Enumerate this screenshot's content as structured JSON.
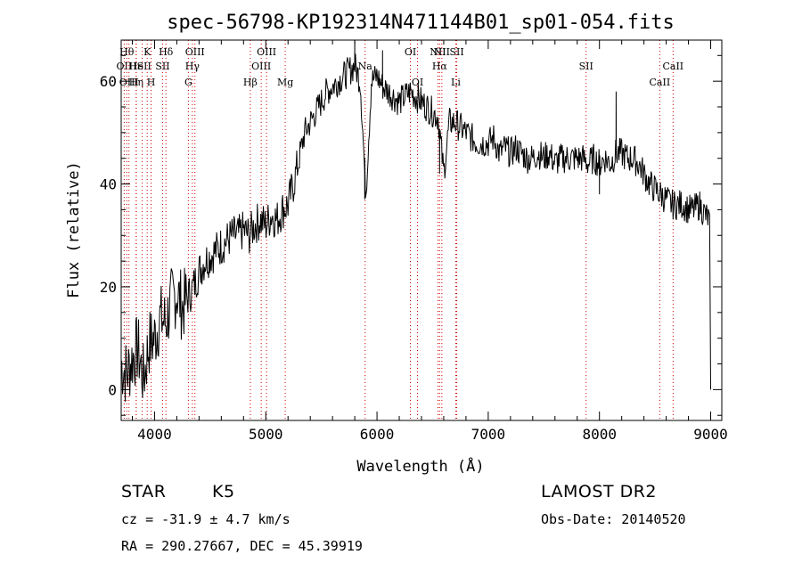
{
  "chart_data": {
    "type": "line",
    "title": "spec-56798-KP192314N471144B01_sp01-054.fits",
    "xlabel": "Wavelength (Å)",
    "ylabel": "Flux (relative)",
    "xlim": [
      3700,
      9100
    ],
    "ylim": [
      -6,
      68
    ],
    "x_ticks": [
      4000,
      5000,
      6000,
      7000,
      8000,
      9000
    ],
    "y_ticks": [
      0,
      20,
      40,
      60
    ],
    "grid": false,
    "line_color": "#000000",
    "marker_line_color": "#cc0000",
    "spectrum": {
      "x": [
        3700,
        3750,
        3800,
        3850,
        3900,
        3950,
        4000,
        4050,
        4100,
        4150,
        4200,
        4250,
        4300,
        4350,
        4400,
        4450,
        4500,
        4550,
        4600,
        4650,
        4700,
        4750,
        4800,
        4850,
        4900,
        4950,
        5000,
        5050,
        5100,
        5150,
        5200,
        5250,
        5300,
        5350,
        5400,
        5450,
        5500,
        5550,
        5600,
        5650,
        5700,
        5750,
        5800,
        5850,
        5900,
        5950,
        6000,
        6050,
        6100,
        6150,
        6200,
        6250,
        6300,
        6350,
        6400,
        6450,
        6500,
        6550,
        6600,
        6650,
        6700,
        6750,
        6800,
        6850,
        6900,
        6950,
        7000,
        7050,
        7100,
        7150,
        7200,
        7250,
        7300,
        7350,
        7400,
        7450,
        7500,
        7550,
        7600,
        7650,
        7700,
        7750,
        7800,
        7850,
        7900,
        7950,
        8000,
        8050,
        8100,
        8150,
        8200,
        8250,
        8300,
        8350,
        8400,
        8450,
        8500,
        8550,
        8600,
        8650,
        8700,
        8750,
        8800,
        8850,
        8900,
        8950,
        8990,
        9000
      ],
      "y": [
        5,
        3,
        6,
        8,
        2,
        9,
        10,
        14,
        13,
        17,
        19,
        16,
        18,
        20,
        23,
        25,
        26,
        27,
        28,
        29,
        30,
        30,
        31,
        30,
        32,
        33,
        32,
        34,
        33,
        35,
        36,
        40,
        45,
        50,
        52,
        54,
        56,
        58,
        59,
        60,
        61,
        62,
        63,
        60,
        38,
        60,
        61,
        59,
        58,
        57,
        56,
        57,
        58,
        57,
        56,
        55,
        54,
        53,
        42,
        52,
        52,
        51,
        50,
        49,
        48,
        48,
        48,
        49,
        46,
        47,
        46,
        47,
        46,
        45,
        45,
        46,
        45,
        46,
        44,
        45,
        45,
        45,
        45,
        45,
        44,
        45,
        44,
        45,
        44,
        46,
        46,
        45,
        45,
        44,
        42,
        40,
        39,
        38,
        37,
        36,
        36,
        36,
        35,
        35,
        36,
        34,
        33,
        0
      ]
    },
    "spikes": [
      {
        "x": 5800,
        "y": 68
      },
      {
        "x": 5890,
        "y": 37
      },
      {
        "x": 6050,
        "y": 66
      },
      {
        "x": 6563,
        "y": 42
      },
      {
        "x": 8150,
        "y": 58
      },
      {
        "x": 8000,
        "y": 38
      }
    ],
    "lines": [
      {
        "wl": 3727,
        "label": "OII",
        "row": 2
      },
      {
        "wl": 3750,
        "label": "Hθ",
        "row": 1
      },
      {
        "wl": 3770,
        "label": "OIII",
        "row": 3
      },
      {
        "wl": 3835,
        "label": "Hη",
        "row": 3
      },
      {
        "wl": 3835,
        "label": "He",
        "row": 2
      },
      {
        "wl": 3889,
        "label": "ISII",
        "row": 2
      },
      {
        "wl": 3934,
        "label": "K",
        "row": 1
      },
      {
        "wl": 3969,
        "label": "H",
        "row": 3
      },
      {
        "wl": 4102,
        "label": "Hδ",
        "row": 1
      },
      {
        "wl": 4072,
        "label": "SII",
        "row": 2
      },
      {
        "wl": 4340,
        "label": "Hγ",
        "row": 2
      },
      {
        "wl": 4363,
        "label": "OIII",
        "row": 1
      },
      {
        "wl": 4304,
        "label": "G",
        "row": 3
      },
      {
        "wl": 4861,
        "label": "Hβ",
        "row": 3
      },
      {
        "wl": 4959,
        "label": "OIII",
        "row": 2
      },
      {
        "wl": 5007,
        "label": "OIII",
        "row": 1
      },
      {
        "wl": 5175,
        "label": "Mg",
        "row": 3
      },
      {
        "wl": 5893,
        "label": "Na",
        "row": 2
      },
      {
        "wl": 6300,
        "label": "OI",
        "row": 1
      },
      {
        "wl": 6364,
        "label": "OI",
        "row": 3
      },
      {
        "wl": 6548,
        "label": "NII",
        "row": 1
      },
      {
        "wl": 6563,
        "label": "Hα",
        "row": 2
      },
      {
        "wl": 6583,
        "label": "NII",
        "row": 1
      },
      {
        "wl": 6717,
        "label": "SII",
        "row": 1
      },
      {
        "wl": 6708,
        "label": "Li",
        "row": 3
      },
      {
        "wl": 7880,
        "label": "SII",
        "row": 2
      },
      {
        "wl": 8542,
        "label": "CaII",
        "row": 3
      },
      {
        "wl": 8662,
        "label": "CaII",
        "row": 2
      }
    ]
  },
  "info": {
    "object_class": "STAR",
    "subclass": "K5",
    "cz": "cz = -31.9 ± 4.7 km/s",
    "coords": "RA = 290.27667, DEC =  45.39919",
    "survey": "LAMOST DR2",
    "obs_date": "Obs-Date: 20140520"
  }
}
